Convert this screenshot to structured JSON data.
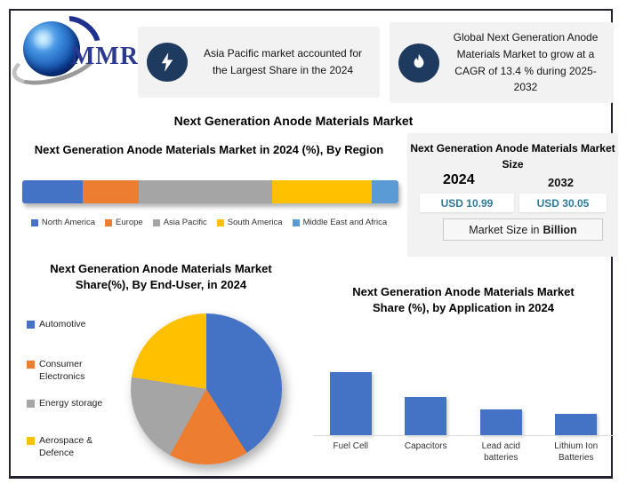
{
  "logo": {
    "text": "MMR"
  },
  "main_title": "Next Generation Anode Materials Market",
  "highlights": [
    {
      "icon": "lightning-bolt",
      "icon_bg": "#1f3a5f",
      "text": "Asia Pacific market accounted for the Largest Share in the 2024"
    },
    {
      "icon": "flame",
      "icon_bg": "#1f3a5f",
      "text": "Global Next Generation Anode Materials Market to grow at a CAGR of 13.4 % during 2025-2032"
    }
  ],
  "market_size": {
    "title": "Next Generation Anode Materials Market Size",
    "year_start": "2024",
    "year_end": "2032",
    "value_start": "USD 10.99",
    "value_end": "USD 30.05",
    "value_color": "#2E7C9B",
    "note_text": "Market Size in",
    "note_bold": "Billion"
  },
  "chart_data": [
    {
      "type": "stacked-bar",
      "title": "Next Generation Anode Materials Market  in 2024 (%), By Region",
      "unit": "%",
      "legend_position": "bottom",
      "series": [
        {
          "name": "North America",
          "value": 16,
          "color": "#4472C4"
        },
        {
          "name": "Europe",
          "value": 15,
          "color": "#ED7D31"
        },
        {
          "name": "Asia Pacific",
          "value": 35.5,
          "color": "#A5A5A5"
        },
        {
          "name": "South America",
          "value": 26.5,
          "color": "#FFC000"
        },
        {
          "name": "Middle East and Africa",
          "value": 7,
          "color": "#5B9BD5"
        }
      ]
    },
    {
      "type": "pie",
      "title": "Next Generation Anode Materials Market  Share(%), By End-User, in 2024",
      "unit": "%",
      "legend_position": "left",
      "slices": [
        {
          "name": "Automotive",
          "value": 41,
          "color": "#4472C4"
        },
        {
          "name": "Consumer Electronics",
          "value": 17,
          "color": "#ED7D31"
        },
        {
          "name": "Energy storage",
          "value": 19.5,
          "color": "#A5A5A5"
        },
        {
          "name": "Aerospace & Defence",
          "value": 22.5,
          "color": "#FFC000"
        }
      ]
    },
    {
      "type": "bar",
      "title": "Next Generation Anode Materials Market  Share (%), by Application in 2024",
      "unit": "%",
      "categories": [
        "Fuel Cell",
        "Capacitors",
        "Lead acid batteries",
        "Lithium Ion Batteries"
      ],
      "values": [
        41,
        25,
        17,
        14
      ],
      "color": "#4472C4",
      "ylim": [
        0,
        45
      ],
      "grid": false,
      "legend_position": "none"
    }
  ]
}
